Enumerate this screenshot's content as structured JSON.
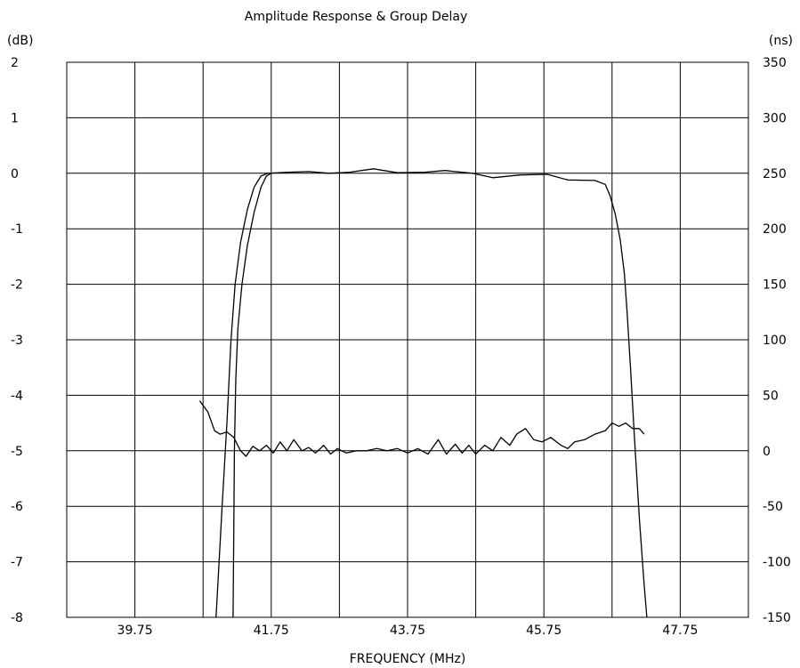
{
  "chart_data": {
    "type": "line",
    "title": "Amplitude Response & Group Delay",
    "xlabel": "FREQUENCY (MHz)",
    "ylabel_left": "(dB)",
    "ylabel_right": "(ns)",
    "xlim": [
      38.75,
      48.75
    ],
    "ylim_left": [
      -8,
      2
    ],
    "ylim_right": [
      -150,
      350
    ],
    "grid": true,
    "x_ticks": [
      39.75,
      41.75,
      43.75,
      45.75,
      47.75
    ],
    "x_tick_labels": [
      "39.75",
      "41.75",
      "43.75",
      "45.75",
      "47.75"
    ],
    "y_left_ticks": [
      2,
      1,
      0,
      -1,
      -2,
      -3,
      -4,
      -5,
      -6,
      -7,
      -8
    ],
    "y_left_tick_labels": [
      "2",
      "1",
      "0",
      "-1",
      "-2",
      "-3",
      "-4",
      "-5",
      "-6",
      "-7",
      "-8"
    ],
    "y_right_ticks": [
      350,
      300,
      250,
      200,
      150,
      100,
      50,
      0,
      -50,
      -100,
      -150
    ],
    "y_right_tick_labels": [
      "350",
      "300",
      "250",
      "200",
      "150",
      "100",
      "50",
      "0",
      "-50",
      "-100",
      "-150"
    ],
    "series": [
      {
        "axis": "left",
        "color": "#000000",
        "points": [
          [
            40.94,
            -8.0
          ],
          [
            41.03,
            -6.0
          ],
          [
            41.1,
            -4.5
          ],
          [
            41.16,
            -3.0
          ],
          [
            41.22,
            -2.0
          ],
          [
            41.3,
            -1.25
          ],
          [
            41.4,
            -0.65
          ],
          [
            41.5,
            -0.25
          ],
          [
            41.6,
            -0.05
          ],
          [
            41.7,
            0.0
          ],
          [
            42.0,
            0.02
          ],
          [
            42.3,
            0.03
          ],
          [
            42.6,
            0.0
          ],
          [
            42.9,
            0.02
          ],
          [
            43.25,
            0.08
          ],
          [
            43.6,
            0.01
          ],
          [
            44.0,
            0.02
          ],
          [
            44.3,
            0.05
          ],
          [
            44.7,
            0.0
          ],
          [
            45.0,
            -0.08
          ],
          [
            45.4,
            -0.03
          ],
          [
            45.8,
            -0.02
          ],
          [
            46.1,
            -0.12
          ],
          [
            46.5,
            -0.13
          ],
          [
            46.65,
            -0.2
          ],
          [
            46.72,
            -0.4
          ],
          [
            46.8,
            -0.75
          ],
          [
            46.87,
            -1.2
          ],
          [
            46.93,
            -1.8
          ],
          [
            46.97,
            -2.5
          ],
          [
            47.02,
            -3.5
          ],
          [
            47.08,
            -4.8
          ],
          [
            47.15,
            -6.2
          ],
          [
            47.22,
            -7.4
          ],
          [
            47.26,
            -8.0
          ]
        ]
      },
      {
        "axis": "left",
        "color": "#000000",
        "points": [
          [
            41.19,
            -8.0
          ],
          [
            41.2,
            -6.5
          ],
          [
            41.21,
            -5.0
          ],
          [
            41.23,
            -3.7
          ],
          [
            41.26,
            -2.8
          ],
          [
            41.32,
            -2.0
          ],
          [
            41.4,
            -1.3
          ],
          [
            41.5,
            -0.7
          ],
          [
            41.6,
            -0.25
          ],
          [
            41.68,
            -0.05
          ],
          [
            41.75,
            0.0
          ]
        ]
      },
      {
        "axis": "right",
        "color": "#000000",
        "points": [
          [
            40.7,
            45
          ],
          [
            40.82,
            35
          ],
          [
            40.92,
            18
          ],
          [
            41.0,
            15
          ],
          [
            41.1,
            17
          ],
          [
            41.2,
            12
          ],
          [
            41.3,
            0
          ],
          [
            41.38,
            -5
          ],
          [
            41.48,
            4
          ],
          [
            41.58,
            0
          ],
          [
            41.68,
            5
          ],
          [
            41.78,
            -2
          ],
          [
            41.88,
            8
          ],
          [
            41.98,
            0
          ],
          [
            42.08,
            10
          ],
          [
            42.2,
            0
          ],
          [
            42.3,
            3
          ],
          [
            42.4,
            -2
          ],
          [
            42.52,
            5
          ],
          [
            42.62,
            -3
          ],
          [
            42.72,
            2
          ],
          [
            42.85,
            -2
          ],
          [
            43.0,
            0
          ],
          [
            43.15,
            0
          ],
          [
            43.3,
            2
          ],
          [
            43.45,
            0
          ],
          [
            43.6,
            2
          ],
          [
            43.75,
            -2
          ],
          [
            43.9,
            2
          ],
          [
            44.05,
            -3
          ],
          [
            44.2,
            10
          ],
          [
            44.32,
            -3
          ],
          [
            44.45,
            6
          ],
          [
            44.55,
            -2
          ],
          [
            44.65,
            5
          ],
          [
            44.75,
            -3
          ],
          [
            44.88,
            5
          ],
          [
            45.0,
            0
          ],
          [
            45.12,
            12
          ],
          [
            45.25,
            5
          ],
          [
            45.35,
            15
          ],
          [
            45.48,
            20
          ],
          [
            45.6,
            10
          ],
          [
            45.72,
            8
          ],
          [
            45.85,
            12
          ],
          [
            46.0,
            5
          ],
          [
            46.1,
            2
          ],
          [
            46.2,
            8
          ],
          [
            46.35,
            10
          ],
          [
            46.5,
            15
          ],
          [
            46.65,
            18
          ],
          [
            46.75,
            25
          ],
          [
            46.85,
            22
          ],
          [
            46.95,
            25
          ],
          [
            47.05,
            20
          ],
          [
            47.15,
            20
          ],
          [
            47.22,
            15
          ]
        ]
      }
    ]
  }
}
